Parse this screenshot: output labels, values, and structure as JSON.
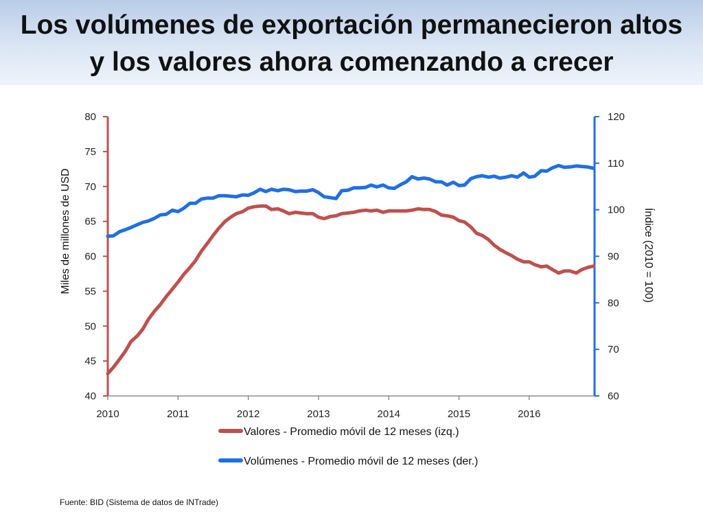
{
  "title_line1": "Los volúmenes de exportación permanecieron altos",
  "title_line2": "y los valores ahora comenzando a crecer",
  "source": "Fuente: BID (Sistema de datos de INTrade)",
  "colors": {
    "valores": "#c0504d",
    "volumenes": "#1f6fe5",
    "left_axis": "#c0504d",
    "right_axis": "#1f6fe5"
  },
  "chart_data": {
    "type": "line",
    "x_label": "",
    "y_left_label": "Miles de millones de USD",
    "y_right_label": "Índice (2010 = 100)",
    "y_left_range": [
      40,
      80
    ],
    "y_left_ticks": [
      "40",
      "45",
      "50",
      "55",
      "60",
      "65",
      "70",
      "75",
      "80"
    ],
    "y_right_range": [
      60,
      120
    ],
    "y_right_ticks": [
      "60",
      "70",
      "80",
      "90",
      "100",
      "110",
      "120"
    ],
    "x_range": [
      2010,
      2016.93
    ],
    "x_ticks": [
      "2010",
      "2011",
      "2012",
      "2013",
      "2014",
      "2015",
      "2016"
    ],
    "grid": false,
    "legend_position": "bottom",
    "series": [
      {
        "name": "Valores - Promedio móvil de 12 meses (izq.)",
        "axis": "left",
        "x": [
          2010.0,
          2010.08,
          2010.17,
          2010.25,
          2010.33,
          2010.42,
          2010.5,
          2010.58,
          2010.67,
          2010.75,
          2010.83,
          2010.92,
          2011.0,
          2011.08,
          2011.17,
          2011.25,
          2011.33,
          2011.42,
          2011.5,
          2011.58,
          2011.67,
          2011.75,
          2011.83,
          2011.92,
          2012.0,
          2012.08,
          2012.17,
          2012.25,
          2012.33,
          2012.42,
          2012.5,
          2012.58,
          2012.67,
          2012.75,
          2012.83,
          2012.92,
          2013.0,
          2013.08,
          2013.17,
          2013.25,
          2013.33,
          2013.42,
          2013.5,
          2013.58,
          2013.67,
          2013.75,
          2013.83,
          2013.92,
          2014.0,
          2014.08,
          2014.17,
          2014.25,
          2014.33,
          2014.42,
          2014.5,
          2014.58,
          2014.67,
          2014.75,
          2014.83,
          2014.92,
          2015.0,
          2015.08,
          2015.17,
          2015.25,
          2015.33,
          2015.42,
          2015.5,
          2015.58,
          2015.67,
          2015.75,
          2015.83,
          2015.92,
          2016.0,
          2016.08,
          2016.17,
          2016.25,
          2016.33,
          2016.42,
          2016.5,
          2016.58,
          2016.67,
          2016.75,
          2016.83,
          2016.92
        ],
        "values": [
          43.2,
          44.1,
          45.3,
          46.4,
          47.8,
          48.6,
          49.6,
          51.0,
          52.2,
          53.1,
          54.2,
          55.3,
          56.3,
          57.4,
          58.4,
          59.4,
          60.7,
          61.9,
          63.0,
          64.0,
          65.0,
          65.6,
          66.1,
          66.4,
          66.9,
          67.1,
          67.2,
          67.2,
          66.7,
          66.8,
          66.5,
          66.1,
          66.3,
          66.2,
          66.1,
          66.1,
          65.6,
          65.4,
          65.7,
          65.8,
          66.1,
          66.2,
          66.3,
          66.5,
          66.6,
          66.5,
          66.6,
          66.3,
          66.5,
          66.5,
          66.5,
          66.5,
          66.6,
          66.8,
          66.7,
          66.7,
          66.4,
          65.9,
          65.8,
          65.6,
          65.1,
          64.9,
          64.2,
          63.3,
          63.0,
          62.4,
          61.6,
          61.0,
          60.5,
          60.1,
          59.6,
          59.2,
          59.2,
          58.8,
          58.5,
          58.6,
          58.1,
          57.6,
          57.9,
          57.9,
          57.6,
          58.1,
          58.4,
          58.6
        ]
      },
      {
        "name": "Volúmenes - Promedio móvil de 12 meses (der.)",
        "axis": "right",
        "x": [
          2010.0,
          2010.08,
          2010.17,
          2010.25,
          2010.33,
          2010.42,
          2010.5,
          2010.58,
          2010.67,
          2010.75,
          2010.83,
          2010.92,
          2011.0,
          2011.08,
          2011.17,
          2011.25,
          2011.33,
          2011.42,
          2011.5,
          2011.58,
          2011.67,
          2011.75,
          2011.83,
          2011.92,
          2012.0,
          2012.08,
          2012.17,
          2012.25,
          2012.33,
          2012.42,
          2012.5,
          2012.58,
          2012.67,
          2012.75,
          2012.83,
          2012.92,
          2013.0,
          2013.08,
          2013.17,
          2013.25,
          2013.33,
          2013.42,
          2013.5,
          2013.58,
          2013.67,
          2013.75,
          2013.83,
          2013.92,
          2014.0,
          2014.08,
          2014.17,
          2014.25,
          2014.33,
          2014.42,
          2014.5,
          2014.58,
          2014.67,
          2014.75,
          2014.83,
          2014.92,
          2015.0,
          2015.08,
          2015.17,
          2015.25,
          2015.33,
          2015.42,
          2015.5,
          2015.58,
          2015.67,
          2015.75,
          2015.83,
          2015.92,
          2016.0,
          2016.08,
          2016.17,
          2016.25,
          2016.33,
          2016.42,
          2016.5,
          2016.58,
          2016.67,
          2016.75,
          2016.83,
          2016.92
        ],
        "values": [
          94.3,
          94.4,
          95.3,
          95.7,
          96.2,
          96.8,
          97.3,
          97.6,
          98.2,
          98.9,
          99.0,
          99.9,
          99.6,
          100.3,
          101.4,
          101.4,
          102.3,
          102.5,
          102.5,
          103.0,
          103.0,
          102.9,
          102.8,
          103.2,
          103.1,
          103.6,
          104.4,
          103.9,
          104.4,
          104.1,
          104.4,
          104.3,
          103.9,
          104.0,
          104.0,
          104.3,
          103.7,
          102.8,
          102.6,
          102.4,
          104.1,
          104.2,
          104.7,
          104.7,
          104.8,
          105.3,
          104.9,
          105.3,
          104.7,
          104.6,
          105.4,
          106.0,
          107.1,
          106.6,
          106.8,
          106.6,
          106.0,
          106.0,
          105.3,
          105.9,
          105.2,
          105.3,
          106.7,
          107.1,
          107.3,
          107.0,
          107.2,
          106.8,
          107.0,
          107.3,
          107.0,
          107.9,
          107.0,
          107.2,
          108.4,
          108.3,
          109.0,
          109.5,
          109.1,
          109.2,
          109.4,
          109.3,
          109.2,
          108.9
        ]
      }
    ]
  }
}
